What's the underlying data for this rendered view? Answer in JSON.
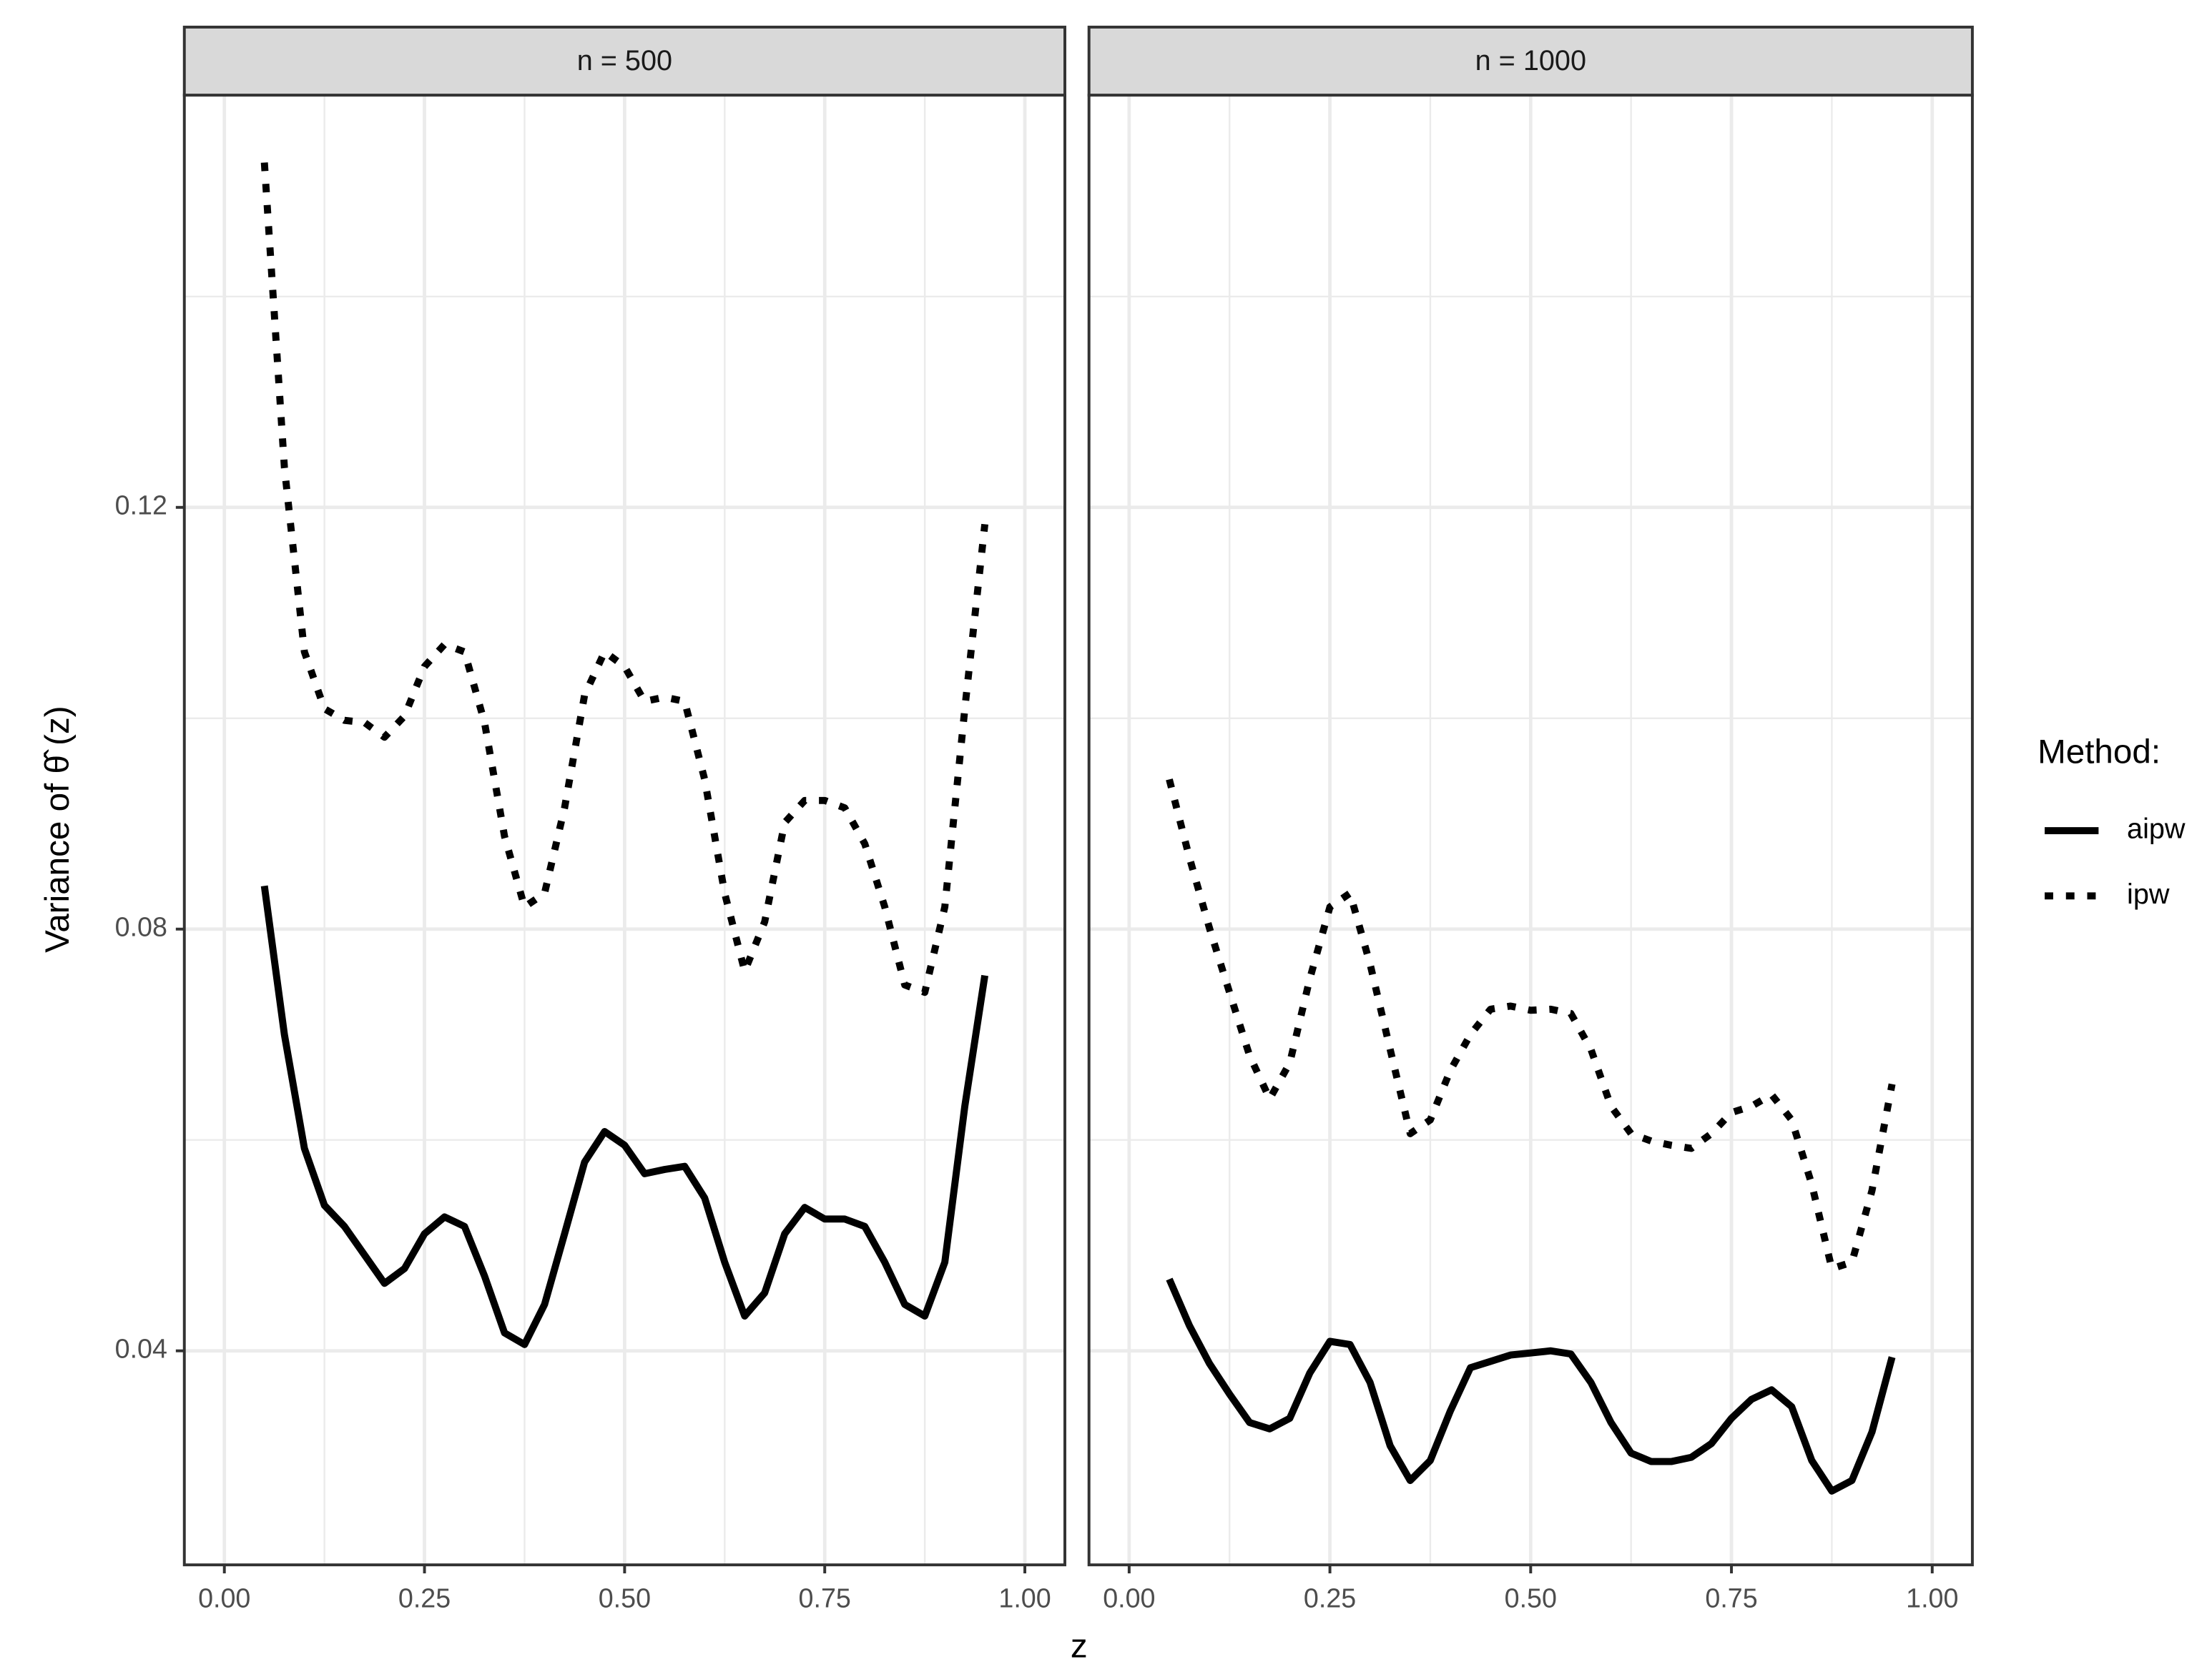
{
  "chart_data": [
    {
      "type": "line",
      "title": "n = 500",
      "x": [
        0.05,
        0.075,
        0.1,
        0.125,
        0.15,
        0.175,
        0.2,
        0.225,
        0.25,
        0.275,
        0.3,
        0.325,
        0.35,
        0.375,
        0.4,
        0.425,
        0.45,
        0.475,
        0.5,
        0.525,
        0.55,
        0.575,
        0.6,
        0.625,
        0.65,
        0.675,
        0.7,
        0.725,
        0.75,
        0.775,
        0.8,
        0.825,
        0.85,
        0.875,
        0.9,
        0.925,
        0.95
      ],
      "series": [
        {
          "name": "aipw",
          "color": "#000000",
          "linestyle": "solid",
          "values": [
            0.0841,
            0.07,
            0.0592,
            0.0538,
            0.0518,
            0.0491,
            0.0464,
            0.0478,
            0.0511,
            0.0527,
            0.0518,
            0.0471,
            0.0417,
            0.0406,
            0.0444,
            0.0511,
            0.0579,
            0.0608,
            0.0595,
            0.0568,
            0.0572,
            0.0575,
            0.0545,
            0.0484,
            0.0433,
            0.0455,
            0.0511,
            0.0536,
            0.0525,
            0.0525,
            0.0518,
            0.0484,
            0.0444,
            0.0433,
            0.0484,
            0.0632,
            0.0756
          ]
        },
        {
          "name": "ipw",
          "color": "#000000",
          "linestyle": "dotted",
          "values": [
            0.1527,
            0.1238,
            0.1063,
            0.1009,
            0.0998,
            0.0996,
            0.0982,
            0.1002,
            0.1049,
            0.107,
            0.1063,
            0.0996,
            0.0888,
            0.0821,
            0.0834,
            0.0915,
            0.1022,
            0.1063,
            0.1049,
            0.1016,
            0.102,
            0.1016,
            0.0942,
            0.0834,
            0.076,
            0.0807,
            0.0901,
            0.0922,
            0.0922,
            0.0915,
            0.0881,
            0.0821,
            0.0747,
            0.074,
            0.0821,
            0.1009,
            0.1184
          ]
        }
      ],
      "xlim": [
        -0.05,
        1.05
      ],
      "ylim": [
        0.0197,
        0.1591
      ],
      "xticks": [
        {
          "value": 0,
          "label": "0.00"
        },
        {
          "value": 0.25,
          "label": "0.25"
        },
        {
          "value": 0.5,
          "label": "0.50"
        },
        {
          "value": 0.75,
          "label": "0.75"
        },
        {
          "value": 1,
          "label": "1.00"
        }
      ],
      "yticks": [
        0.04,
        0.08,
        0.12
      ],
      "x_minor_grid": [
        0.125,
        0.375,
        0.625,
        0.875
      ],
      "y_minor_grid": [
        0.06,
        0.1,
        0.14
      ],
      "grid": true
    },
    {
      "type": "line",
      "title": "n = 1000",
      "x": [
        0.05,
        0.075,
        0.1,
        0.125,
        0.15,
        0.175,
        0.2,
        0.225,
        0.25,
        0.275,
        0.3,
        0.325,
        0.35,
        0.375,
        0.4,
        0.425,
        0.45,
        0.475,
        0.5,
        0.525,
        0.55,
        0.575,
        0.6,
        0.625,
        0.65,
        0.675,
        0.7,
        0.725,
        0.75,
        0.775,
        0.8,
        0.825,
        0.85,
        0.875,
        0.9,
        0.925,
        0.95
      ],
      "series": [
        {
          "name": "aipw",
          "color": "#000000",
          "linestyle": "solid",
          "values": [
            0.0468,
            0.0424,
            0.0388,
            0.0359,
            0.0332,
            0.0326,
            0.0336,
            0.0379,
            0.0409,
            0.0406,
            0.037,
            0.031,
            0.0277,
            0.0296,
            0.0343,
            0.0384,
            0.039,
            0.0396,
            0.0398,
            0.04,
            0.0397,
            0.037,
            0.0332,
            0.0303,
            0.0295,
            0.0295,
            0.0299,
            0.0312,
            0.0336,
            0.0354,
            0.0363,
            0.0347,
            0.0296,
            0.0267,
            0.0277,
            0.0323,
            0.0394
          ]
        },
        {
          "name": "ipw",
          "color": "#000000",
          "linestyle": "dotted",
          "values": [
            0.0942,
            0.0868,
            0.0801,
            0.074,
            0.068,
            0.0639,
            0.0673,
            0.0753,
            0.0821,
            0.0834,
            0.0767,
            0.0686,
            0.0606,
            0.0619,
            0.0666,
            0.07,
            0.0724,
            0.0727,
            0.0723,
            0.0724,
            0.072,
            0.0686,
            0.0632,
            0.0606,
            0.0599,
            0.0595,
            0.0592,
            0.0606,
            0.0626,
            0.0632,
            0.0643,
            0.0619,
            0.0558,
            0.0478,
            0.0484,
            0.0552,
            0.0653
          ]
        }
      ],
      "xlim": [
        -0.05,
        1.05
      ],
      "ylim": [
        0.0197,
        0.1591
      ],
      "xticks": [
        {
          "value": 0,
          "label": "0.00"
        },
        {
          "value": 0.25,
          "label": "0.25"
        },
        {
          "value": 0.5,
          "label": "0.50"
        },
        {
          "value": 0.75,
          "label": "0.75"
        },
        {
          "value": 1,
          "label": "1.00"
        }
      ],
      "yticks": [
        0.04,
        0.08,
        0.12
      ],
      "x_minor_grid": [
        0.125,
        0.375,
        0.625,
        0.875
      ],
      "y_minor_grid": [
        0.06,
        0.1,
        0.14
      ],
      "grid": true
    }
  ],
  "xlabel": "z",
  "ylabel": "Variance of θ̂ (z)",
  "legend_title": "Method:"
}
